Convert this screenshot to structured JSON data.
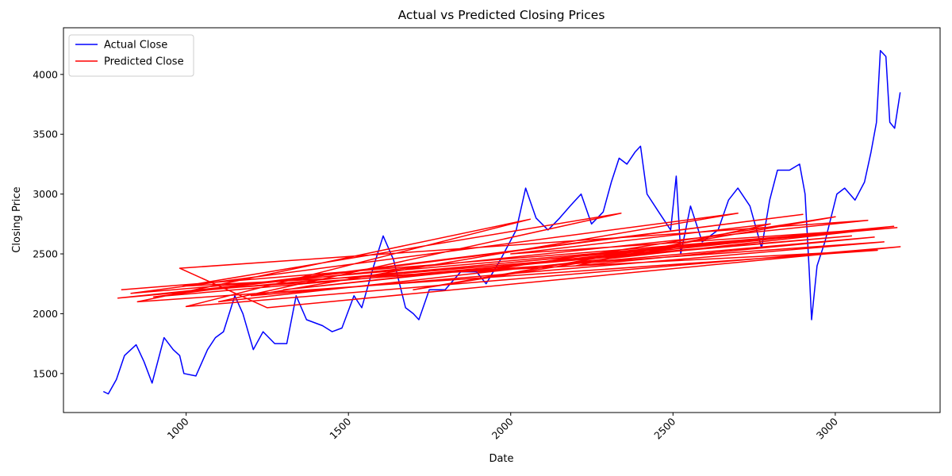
{
  "chart_data": {
    "type": "line",
    "title": "Actual vs Predicted Closing Prices",
    "xlabel": "Date",
    "ylabel": "Closing Price",
    "xlim": [
      622,
      3323
    ],
    "ylim": [
      1174,
      4390
    ],
    "xticks": [
      1000,
      1500,
      2000,
      2500,
      3000
    ],
    "yticks": [
      1500,
      2000,
      2500,
      3000,
      3500,
      4000
    ],
    "legend": "upper left",
    "series": [
      {
        "name": "Actual Close",
        "color": "#0000ff",
        "x": [
          745,
          760,
          785,
          810,
          846,
          870,
          895,
          932,
          960,
          980,
          993,
          1030,
          1066,
          1090,
          1115,
          1150,
          1175,
          1207,
          1237,
          1273,
          1310,
          1339,
          1371,
          1420,
          1450,
          1480,
          1517,
          1541,
          1578,
          1607,
          1639,
          1676,
          1700,
          1717,
          1749,
          1798,
          1846,
          1895,
          1924,
          1968,
          2017,
          2046,
          2078,
          2115,
          2151,
          2183,
          2217,
          2249,
          2285,
          2310,
          2334,
          2358,
          2383,
          2400,
          2420,
          2456,
          2493,
          2510,
          2524,
          2554,
          2590,
          2639,
          2671,
          2700,
          2737,
          2773,
          2798,
          2822,
          2859,
          2890,
          2907,
          2920,
          2927,
          2944,
          2968,
          3005,
          3029,
          3061,
          3090,
          3110,
          3127,
          3139,
          3156,
          3168,
          3183,
          3200
        ],
        "values": [
          1350,
          1330,
          1450,
          1650,
          1740,
          1600,
          1420,
          1800,
          1700,
          1650,
          1500,
          1480,
          1700,
          1800,
          1850,
          2150,
          2000,
          1700,
          1850,
          1750,
          1750,
          2150,
          1950,
          1900,
          1850,
          1880,
          2150,
          2050,
          2400,
          2650,
          2450,
          2050,
          2000,
          1950,
          2200,
          2200,
          2350,
          2350,
          2250,
          2450,
          2700,
          3050,
          2800,
          2700,
          2800,
          2900,
          3000,
          2750,
          2850,
          3100,
          3300,
          3250,
          3350,
          3400,
          3000,
          2850,
          2700,
          3150,
          2500,
          2900,
          2600,
          2700,
          2950,
          3050,
          2900,
          2550,
          2950,
          3200,
          3200,
          3250,
          3000,
          2350,
          1950,
          2400,
          2600,
          3000,
          3050,
          2950,
          3100,
          3350,
          3600,
          4200,
          4150,
          3600,
          3550,
          3850
        ]
      },
      {
        "name": "Predicted Close",
        "color": "#ff0000",
        "x": [
          800,
          3190,
          790,
          3100,
          980,
          1250,
          3200,
          1000,
          2060,
          850,
          3130,
          990,
          2340,
          1100,
          3100,
          830,
          2700,
          1200,
          3150,
          1050,
          2900,
          900,
          3050,
          1500,
          3180,
          1300,
          2500,
          1700,
          3000,
          1900,
          3120,
          2200,
          2800,
          2000,
          3080
        ],
        "values": [
          2200,
          2720,
          2130,
          2780,
          2380,
          2050,
          2560,
          2060,
          2790,
          2100,
          2530,
          2230,
          2840,
          2100,
          2700,
          2170,
          2840,
          2150,
          2600,
          2200,
          2830,
          2140,
          2650,
          2300,
          2730,
          2200,
          2550,
          2200,
          2810,
          2350,
          2640,
          2400,
          2750,
          2500,
          2700
        ]
      }
    ]
  }
}
